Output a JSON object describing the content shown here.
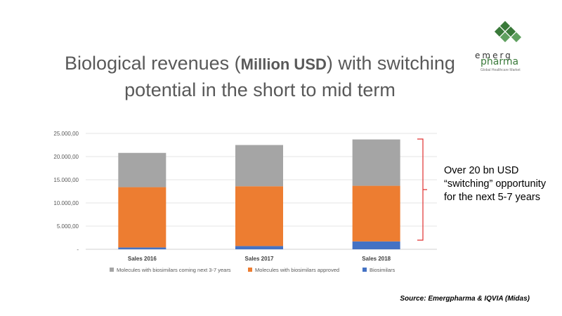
{
  "title": {
    "part1": "Biological revenues (",
    "bold": "Million USD",
    "part2": ") with switching potential in the short to mid term"
  },
  "logo": {
    "word1": "emerg",
    "word2": "pharma",
    "tagline": "Global Healthcare Market"
  },
  "callout": "Over 20 bn USD “switching” opportunity for the next 5-7 years",
  "source": "Source: Emergpharma  & IQVIA (Midas)",
  "colors": {
    "molecules_coming": "#a5a5a5",
    "molecules_approved": "#ed7d31",
    "biosimilars": "#4472c4",
    "bracket": "#e03030"
  },
  "chart_data": {
    "type": "bar",
    "stacked": true,
    "categories": [
      "Sales 2016",
      "Sales 2017",
      "Sales 2018"
    ],
    "series": [
      {
        "name": "Biosimilars",
        "values": [
          400,
          700,
          1700
        ],
        "color": "#4472c4"
      },
      {
        "name": "Molecules with biosimilars approved",
        "values": [
          13000,
          12900,
          12000
        ],
        "color": "#ed7d31"
      },
      {
        "name": "Molecules with biosimilars coming next 3-7 years",
        "values": [
          7400,
          8900,
          10000
        ],
        "color": "#a5a5a5"
      }
    ],
    "legend_order": [
      "Molecules with biosimilars coming next 3-7 years",
      "Molecules with biosimilars approved",
      "Biosimilars"
    ],
    "ylim": [
      0,
      25000
    ],
    "yticks": [
      0,
      5000,
      10000,
      15000,
      20000,
      25000
    ],
    "ytick_labels": [
      "-",
      "5.000,00",
      "10.000,00",
      "15.000,00",
      "20.000,00",
      "25.000,00"
    ],
    "grid": true,
    "legend_position": "bottom"
  }
}
